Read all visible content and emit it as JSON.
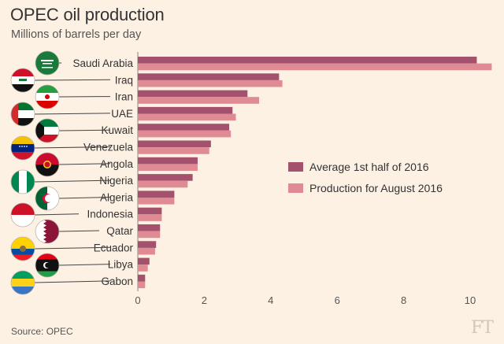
{
  "title": "OPEC oil production",
  "subtitle": "Millions of barrels per day",
  "source": "Source: OPEC",
  "logo": "FT",
  "colors": {
    "background": "#fdf1e4",
    "series1": "#a3516c",
    "series2": "#e08b94"
  },
  "chart_data": {
    "type": "bar",
    "orientation": "horizontal",
    "categories": [
      "Saudi Arabia",
      "Iraq",
      "Iran",
      "UAE",
      "Kuwait",
      "Venezuela",
      "Angola",
      "Nigeria",
      "Algeria",
      "Indonesia",
      "Qatar",
      "Ecuador",
      "Libya",
      "Gabon"
    ],
    "series": [
      {
        "name": "Average 1st half of 2016",
        "values": [
          10.2,
          4.25,
          3.3,
          2.85,
          2.75,
          2.2,
          1.8,
          1.65,
          1.1,
          0.72,
          0.67,
          0.55,
          0.35,
          0.22
        ]
      },
      {
        "name": "Production for August 2016",
        "values": [
          10.65,
          4.35,
          3.65,
          2.95,
          2.8,
          2.15,
          1.8,
          1.5,
          1.1,
          0.72,
          0.67,
          0.52,
          0.3,
          0.22
        ]
      }
    ],
    "xlim": [
      0,
      10.7
    ],
    "xticks": [
      "0",
      "2",
      "4",
      "6",
      "8",
      "10"
    ],
    "legend_position": "center-right",
    "grid": false,
    "flag_icons": [
      "saudi-arabia-flag-icon",
      "iraq-flag-icon",
      "iran-flag-icon",
      "uae-flag-icon",
      "kuwait-flag-icon",
      "venezuela-flag-icon",
      "angola-flag-icon",
      "nigeria-flag-icon",
      "algeria-flag-icon",
      "indonesia-flag-icon",
      "qatar-flag-icon",
      "ecuador-flag-icon",
      "libya-flag-icon",
      "gabon-flag-icon"
    ]
  }
}
